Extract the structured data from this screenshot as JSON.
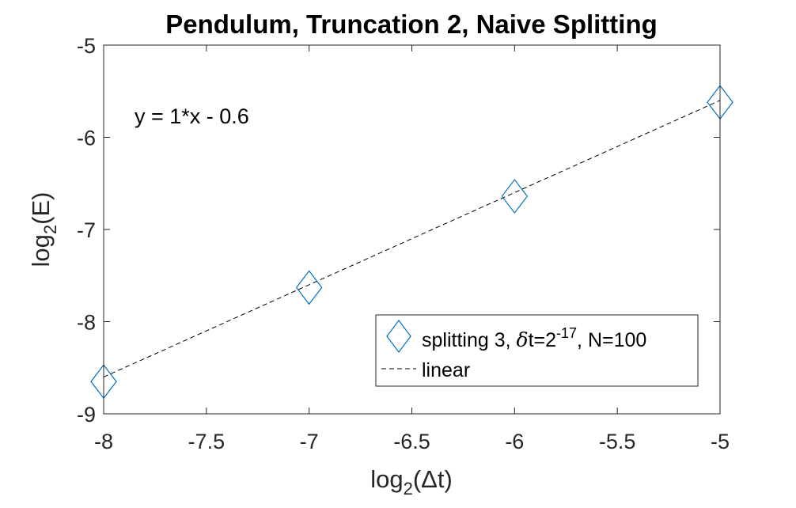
{
  "chart_data": {
    "type": "scatter",
    "title": "Pendulum, Truncation 2, Naive Splitting",
    "xlabel": {
      "main": "log",
      "sub": "2",
      "rest": "(Δt)"
    },
    "ylabel": {
      "main": "log",
      "sub": "2",
      "rest": "(E)"
    },
    "xlim": [
      -8,
      -5
    ],
    "ylim": [
      -9,
      -5
    ],
    "xticks": [
      -8,
      -7.5,
      -7,
      -6.5,
      -6,
      -5.5,
      -5
    ],
    "xtick_labels": [
      "-8",
      "-7.5",
      "-7",
      "-6.5",
      "-6",
      "-5.5",
      "-5"
    ],
    "yticks": [
      -9,
      -8,
      -7,
      -6,
      -5
    ],
    "ytick_labels": [
      "-9",
      "-8",
      "-7",
      "-6",
      "-5"
    ],
    "grid": false,
    "legend_position": "bottom-right",
    "annotation": "y = 1*x - 0.6",
    "series": [
      {
        "name": {
          "a": "splitting 3, ",
          "delta": "δ",
          "b": "t=2",
          "sup": "-17",
          "c": ", N=100"
        },
        "marker": "diamond",
        "color": "#0072bd",
        "x": [
          -8,
          -7,
          -6,
          -5
        ],
        "y": [
          -8.65,
          -7.63,
          -6.64,
          -5.62
        ]
      },
      {
        "name": "linear",
        "style": "dashed",
        "color": "#000000",
        "x": [
          -8,
          -5
        ],
        "y": [
          -8.6,
          -5.6
        ]
      }
    ]
  }
}
